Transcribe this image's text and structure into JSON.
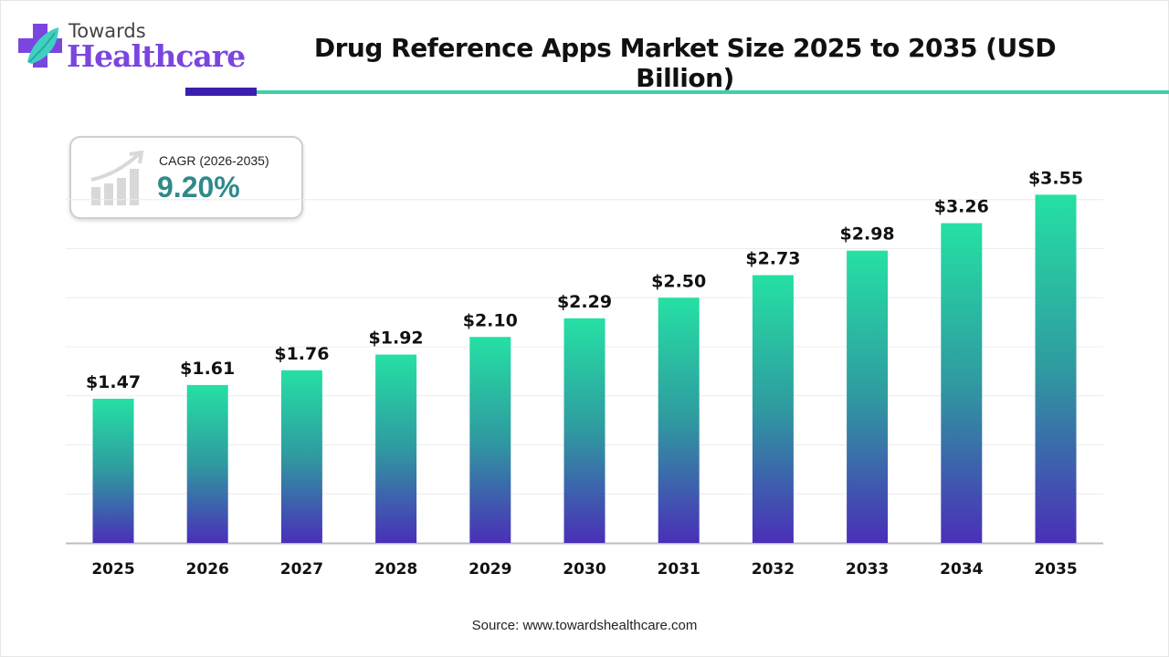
{
  "logo": {
    "line1": "Towards",
    "line2": "Healthcare"
  },
  "title": "Drug Reference Apps Market Size 2025 to 2035 (USD Billion)",
  "cagr": {
    "label": "CAGR (2026-2035)",
    "value": "9.20%",
    "icon": "growth-chart-icon"
  },
  "source": "Source: www.towardshealthcare.com",
  "colors": {
    "bar_top": "#25e0a4",
    "bar_mid": "#2f9aa0",
    "bar_bottom": "#4a2fb8",
    "accent_dark": "#3a1fae",
    "accent_teal": "#3ed0aa",
    "cagr_value": "#2f8a8a"
  },
  "chart_data": {
    "type": "bar",
    "categories": [
      "2025",
      "2026",
      "2027",
      "2028",
      "2029",
      "2030",
      "2031",
      "2032",
      "2033",
      "2034",
      "2035"
    ],
    "values": [
      1.47,
      1.61,
      1.76,
      1.92,
      2.1,
      2.29,
      2.5,
      2.73,
      2.98,
      3.26,
      3.55
    ],
    "data_labels": [
      "$1.47",
      "$1.61",
      "$1.76",
      "$1.92",
      "$2.10",
      "$2.29",
      "$2.50",
      "$2.73",
      "$2.98",
      "$3.26",
      "$3.55"
    ],
    "title": "Drug Reference Apps Market Size 2025 to 2035 (USD Billion)",
    "xlabel": "",
    "ylabel": "",
    "ylim": [
      0,
      4
    ],
    "grid": true,
    "grid_step": 0.5
  }
}
